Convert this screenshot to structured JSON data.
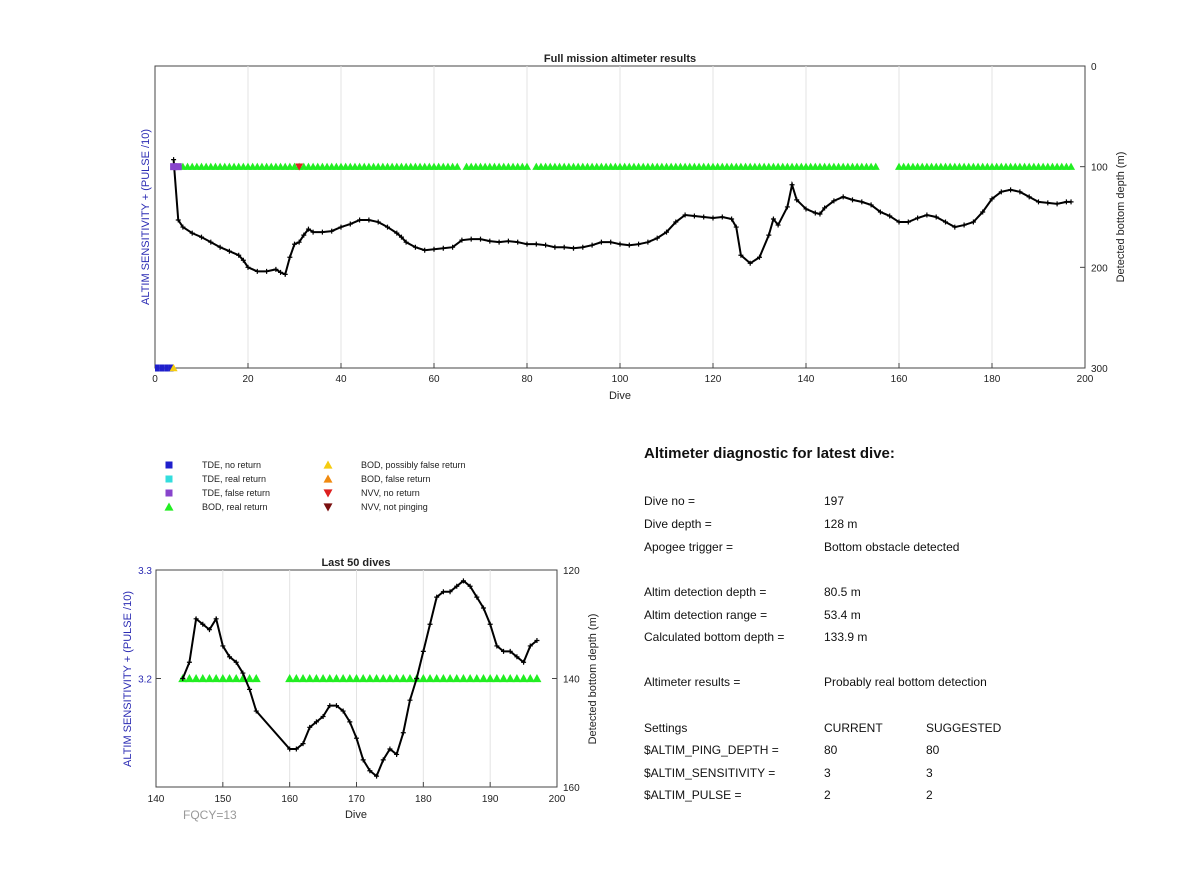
{
  "chart_data": [
    {
      "id": "main",
      "type": "line",
      "title": "Full mission altimeter results",
      "xlabel": "Dive",
      "ylabel_left": "ALTIM SENSITIVITY + (PULSE /10)",
      "ylabel_right": "Detected bottom depth (m)",
      "xlim": [
        0,
        200
      ],
      "ylim_right": [
        300,
        0
      ],
      "xticks": [
        0,
        20,
        40,
        60,
        80,
        100,
        120,
        140,
        160,
        180,
        200
      ],
      "yticks_right": [
        0,
        100,
        200,
        300
      ],
      "bottom_depth": {
        "x": [
          4,
          5,
          6,
          8,
          10,
          12,
          14,
          16,
          18,
          19,
          20,
          22,
          24,
          26,
          27,
          28,
          29,
          30,
          31,
          32,
          33,
          34,
          36,
          38,
          40,
          42,
          44,
          46,
          48,
          50,
          52,
          53,
          54,
          56,
          58,
          60,
          62,
          64,
          66,
          68,
          70,
          72,
          74,
          76,
          78,
          80,
          82,
          84,
          86,
          88,
          90,
          92,
          94,
          96,
          98,
          100,
          102,
          104,
          106,
          108,
          110,
          112,
          114,
          116,
          118,
          120,
          122,
          124,
          125,
          126,
          128,
          130,
          132,
          133,
          134,
          136,
          137,
          138,
          140,
          142,
          143,
          144,
          146,
          148,
          150,
          152,
          154,
          156,
          158,
          160,
          162,
          164,
          166,
          168,
          170,
          172,
          174,
          176,
          178,
          180,
          182,
          184,
          186,
          188,
          190,
          192,
          194,
          196,
          197
        ],
        "y": [
          93,
          153,
          160,
          166,
          170,
          175,
          180,
          184,
          188,
          193,
          200,
          204,
          204,
          202,
          205,
          207,
          190,
          177,
          175,
          168,
          162,
          165,
          165,
          164,
          160,
          157,
          153,
          153,
          155,
          160,
          166,
          170,
          175,
          180,
          183,
          182,
          181,
          180,
          173,
          172,
          172,
          174,
          175,
          174,
          175,
          177,
          177,
          178,
          180,
          180,
          181,
          180,
          178,
          175,
          175,
          177,
          178,
          177,
          175,
          171,
          165,
          155,
          148,
          149,
          150,
          151,
          150,
          152,
          160,
          188,
          196,
          190,
          168,
          152,
          158,
          140,
          118,
          133,
          142,
          146,
          147,
          141,
          134,
          130,
          133,
          135,
          138,
          145,
          149,
          155,
          155,
          151,
          148,
          150,
          155,
          160,
          158,
          155,
          145,
          132,
          125,
          123,
          125,
          130,
          135,
          136,
          137,
          135,
          135
        ]
      },
      "bod_real_return": {
        "segments": [
          [
            6,
            65
          ],
          [
            67,
            80
          ],
          [
            82,
            155
          ],
          [
            160,
            197
          ]
        ],
        "value": 100
      },
      "nvv_no_return": {
        "x": [
          31
        ],
        "value": 100
      },
      "tde_false_return": {
        "x": [
          4,
          5
        ],
        "value": 100
      },
      "tde_no_return": {
        "x": [
          0,
          1,
          2,
          3
        ],
        "value": 300
      },
      "bod_possibly_false_return": {
        "x": [
          4
        ],
        "value": 300
      }
    },
    {
      "id": "last50",
      "type": "line",
      "title": "Last 50 dives",
      "xlabel": "Dive",
      "ylabel_left": "ALTIM SENSITIVITY + (PULSE /10)",
      "ylabel_right": "Detected bottom depth (m)",
      "xlim": [
        140,
        200
      ],
      "ylim_left": [
        3.1,
        3.3
      ],
      "ylim_right": [
        160,
        120
      ],
      "xticks": [
        140,
        150,
        160,
        170,
        180,
        190,
        200
      ],
      "yticks_left": [
        3.2,
        3.3
      ],
      "yticks_right": [
        120,
        140,
        160
      ],
      "bottom_depth": {
        "x": [
          144,
          145,
          146,
          147,
          148,
          149,
          150,
          151,
          152,
          153,
          154,
          155,
          160,
          161,
          162,
          163,
          164,
          165,
          166,
          167,
          168,
          169,
          170,
          171,
          172,
          173,
          174,
          175,
          176,
          177,
          178,
          179,
          180,
          181,
          182,
          183,
          184,
          185,
          186,
          187,
          188,
          189,
          190,
          191,
          192,
          193,
          194,
          195,
          196,
          197
        ],
        "y": [
          140,
          137,
          129,
          130,
          131,
          129,
          134,
          136,
          137,
          139,
          142,
          146,
          153,
          153,
          152,
          149,
          148,
          147,
          145,
          145,
          146,
          148,
          151,
          155,
          157,
          158,
          155,
          153,
          154,
          150,
          144,
          140,
          135,
          130,
          125,
          124,
          124,
          123,
          122,
          123,
          125,
          127,
          130,
          134,
          135,
          135,
          136,
          137,
          134,
          133
        ]
      },
      "bod_real_return": {
        "segments": [
          [
            144,
            155
          ],
          [
            160,
            197
          ]
        ],
        "value": 140
      }
    }
  ],
  "legend": {
    "items": [
      {
        "label": "TDE, no return",
        "color": "#1f1fcc",
        "marker": "square"
      },
      {
        "label": "TDE, real return",
        "color": "#33dddd",
        "marker": "square"
      },
      {
        "label": "TDE, false return",
        "color": "#8844cc",
        "marker": "square"
      },
      {
        "label": "BOD, real return",
        "color": "#22ee22",
        "marker": "triangle-up"
      },
      {
        "label": "BOD, possibly false return",
        "color": "#f5cc10",
        "marker": "triangle-up"
      },
      {
        "label": "BOD, false return",
        "color": "#f08a10",
        "marker": "triangle-up"
      },
      {
        "label": "NVV, no return",
        "color": "#dd2020",
        "marker": "triangle-down"
      },
      {
        "label": "NVV, not pinging",
        "color": "#7a1010",
        "marker": "triangle-down"
      }
    ]
  },
  "fqcy_label": "FQCY=13",
  "diagnostic": {
    "title": "Altimeter diagnostic for latest dive:",
    "dive_no_label": "Dive no =",
    "dive_no": "197",
    "dive_depth_label": "Dive depth =",
    "dive_depth": "128 m",
    "apogee_label": "Apogee trigger =",
    "apogee": "Bottom obstacle detected",
    "det_depth_label": "Altim detection depth =",
    "det_depth": "80.5 m",
    "det_range_label": "Altim detection range =",
    "det_range": "53.4 m",
    "calc_depth_label": "Calculated bottom depth =",
    "calc_depth": "133.9 m",
    "results_label": "Altimeter results =",
    "results": "Probably real bottom detection",
    "settings_label": "Settings",
    "current_label": "CURRENT",
    "suggested_label": "SUGGESTED",
    "ping_label": "$ALTIM_PING_DEPTH =",
    "ping_current": "80",
    "ping_suggested": "80",
    "sens_label": "$ALTIM_SENSITIVITY =",
    "sens_current": "3",
    "sens_suggested": "3",
    "pulse_label": "$ALTIM_PULSE =",
    "pulse_current": "2",
    "pulse_suggested": "2"
  },
  "colors": {
    "line": "#000000",
    "bod_real": "#22ee22",
    "nvv_no_return": "#dd2020",
    "tde_false": "#8844cc",
    "tde_no": "#1f1fcc",
    "bod_possibly_false": "#f5cc10",
    "left_axis_label": "#2b2bb3"
  }
}
